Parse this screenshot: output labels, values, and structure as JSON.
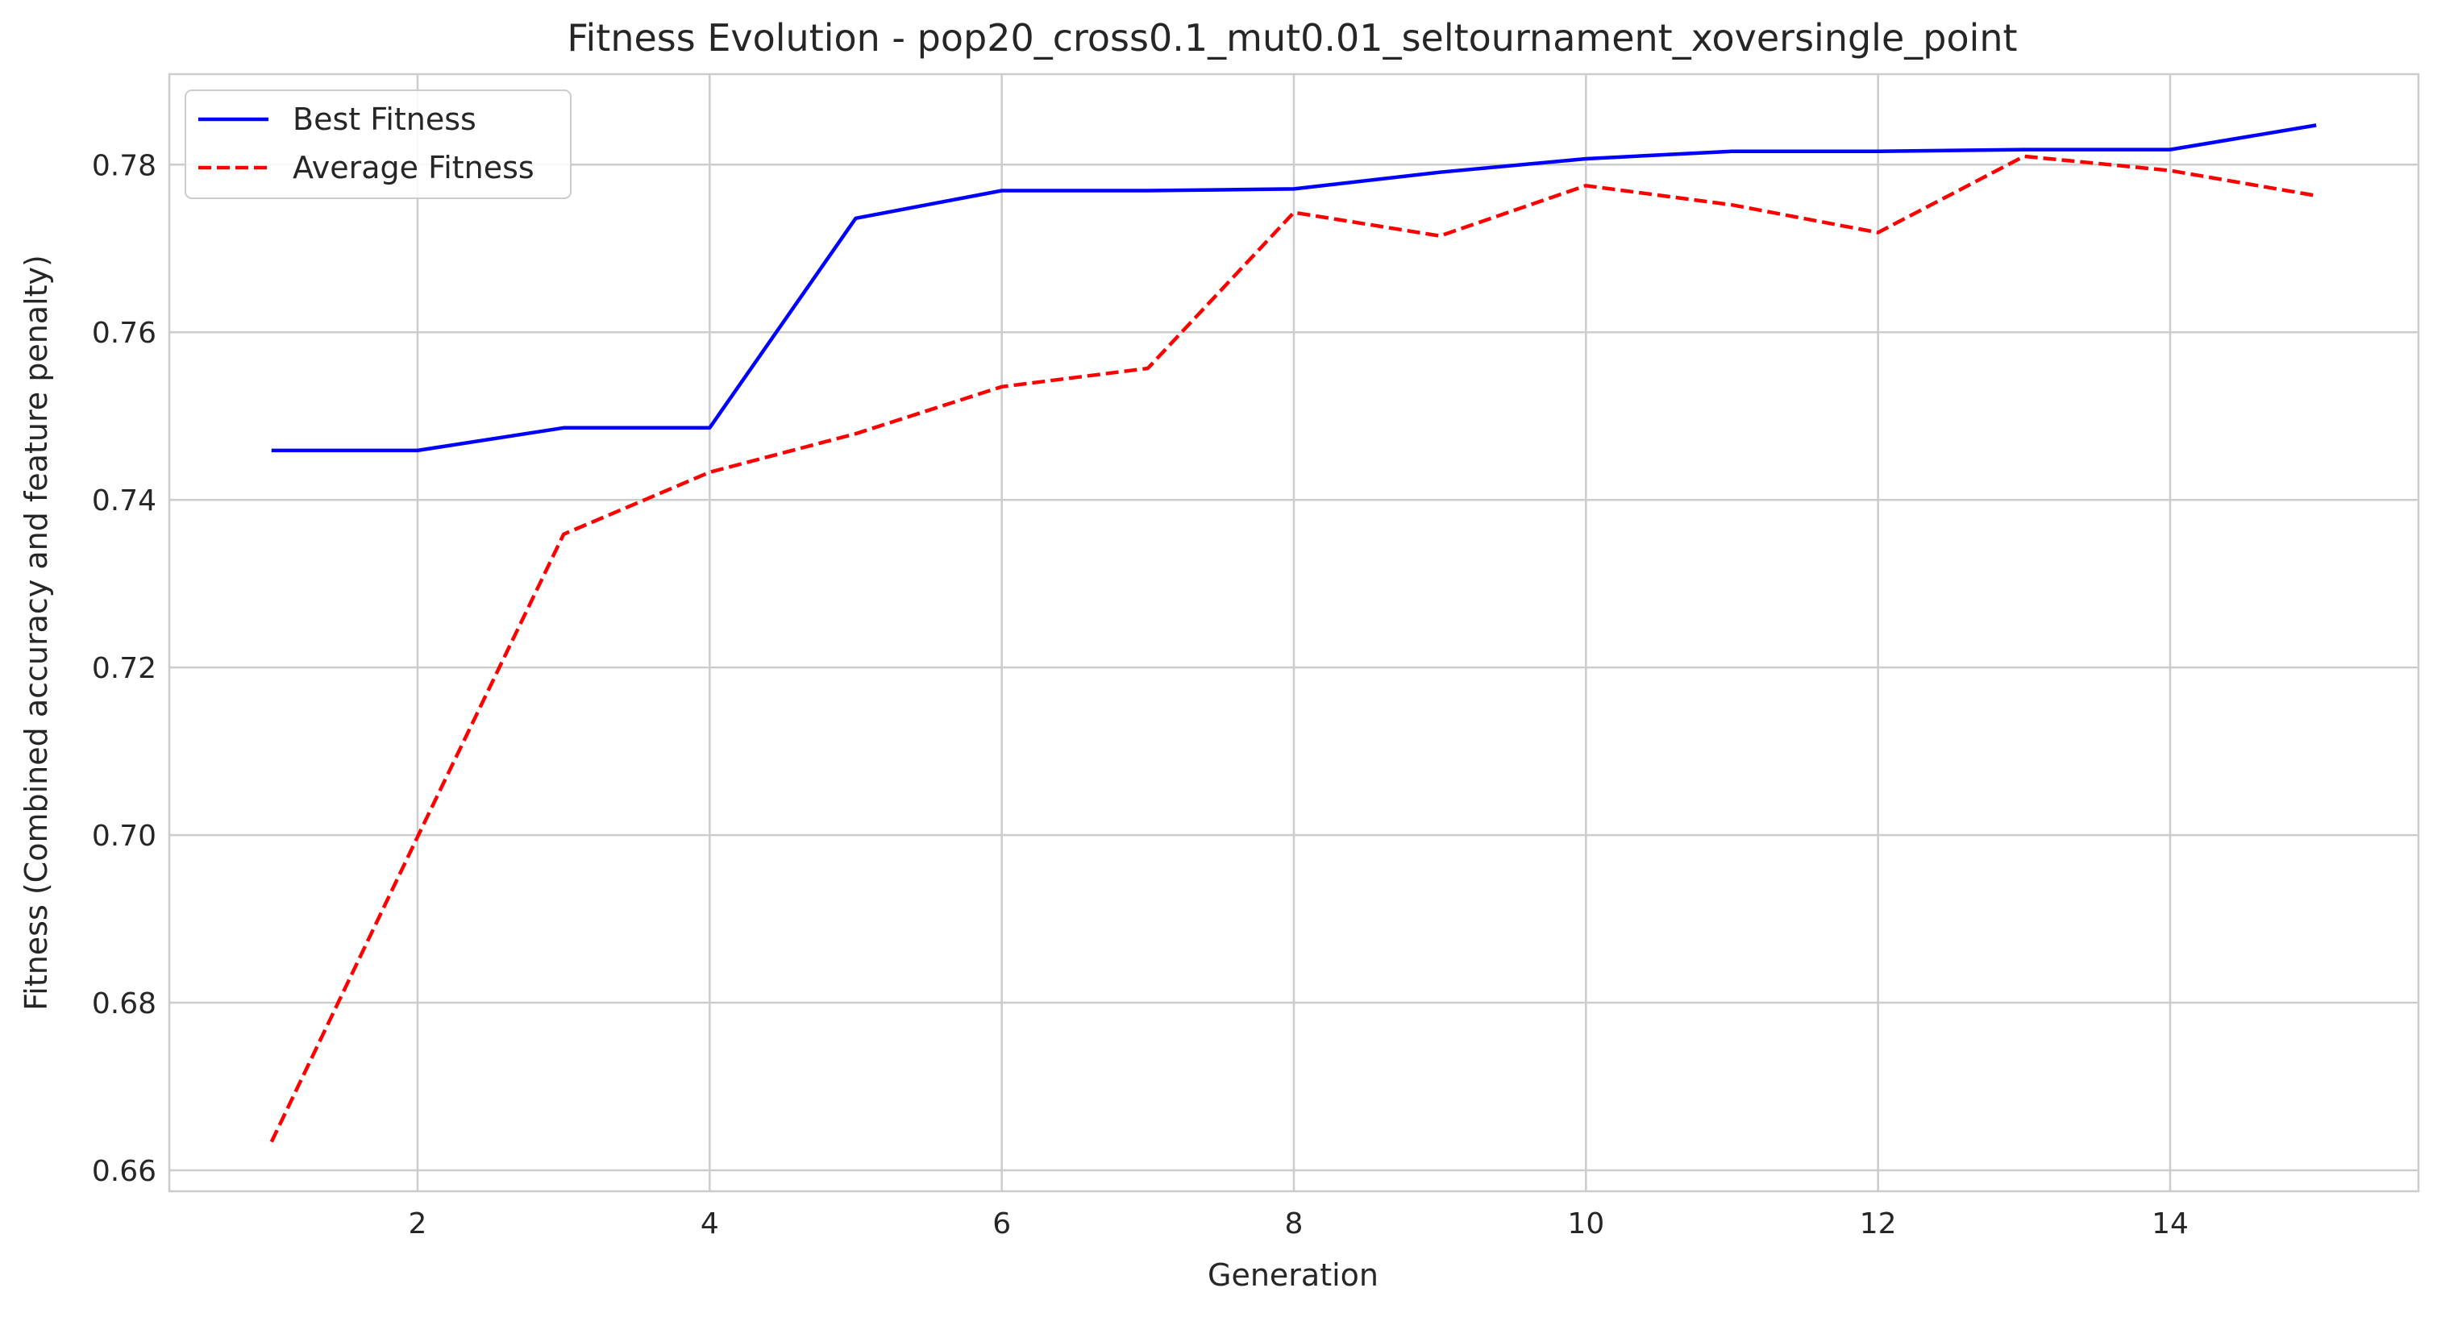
{
  "chart_data": {
    "type": "line",
    "title": "Fitness Evolution - pop20_cross0.1_mut0.01_seltournament_xoversingle_point",
    "xlabel": "Generation",
    "ylabel": "Fitness (Combined accuracy and feature penalty)",
    "x": [
      1,
      2,
      3,
      4,
      5,
      6,
      7,
      8,
      9,
      10,
      11,
      12,
      13,
      14,
      15
    ],
    "xlim": [
      0.3,
      15.7
    ],
    "ylim": [
      0.6575,
      0.7908
    ],
    "xticks": [
      2,
      4,
      6,
      8,
      10,
      12,
      14
    ],
    "xtick_labels": [
      "2",
      "4",
      "6",
      "8",
      "10",
      "12",
      "14"
    ],
    "yticks": [
      0.66,
      0.68,
      0.7,
      0.72,
      0.74,
      0.76,
      0.78
    ],
    "ytick_labels": [
      "0.66",
      "0.68",
      "0.70",
      "0.72",
      "0.74",
      "0.76",
      "0.78"
    ],
    "grid": true,
    "legend_position": "top-left",
    "series": [
      {
        "name": "Best Fitness",
        "color": "#0000ff",
        "style": "solid",
        "values": [
          0.7459,
          0.7459,
          0.7486,
          0.7486,
          0.7736,
          0.7769,
          0.7769,
          0.7771,
          0.7791,
          0.7807,
          0.7816,
          0.7816,
          0.7818,
          0.7818,
          0.7847
        ]
      },
      {
        "name": "Average Fitness",
        "color": "#ff0000",
        "style": "dashed",
        "values": [
          0.6634,
          0.6998,
          0.7359,
          0.7433,
          0.7479,
          0.7535,
          0.7557,
          0.7743,
          0.7715,
          0.7775,
          0.7752,
          0.7719,
          0.781,
          0.7793,
          0.7763
        ]
      }
    ]
  }
}
